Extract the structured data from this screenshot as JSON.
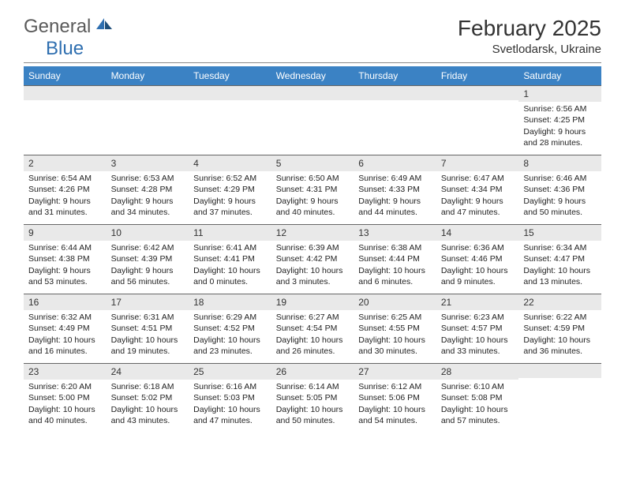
{
  "brand": {
    "part1": "General",
    "part2": "Blue"
  },
  "title": "February 2025",
  "location": "Svetlodarsk, Ukraine",
  "headers": [
    "Sunday",
    "Monday",
    "Tuesday",
    "Wednesday",
    "Thursday",
    "Friday",
    "Saturday"
  ],
  "colors": {
    "header_bg": "#3b82c4",
    "header_fg": "#ffffff",
    "daynum_bg": "#e9e9e9",
    "divider": "#888888",
    "logo_gray": "#5a5a5a",
    "logo_blue": "#2f6fb0"
  },
  "weeks": [
    [
      {
        "n": "",
        "sunrise": "",
        "sunset": "",
        "daylight": ""
      },
      {
        "n": "",
        "sunrise": "",
        "sunset": "",
        "daylight": ""
      },
      {
        "n": "",
        "sunrise": "",
        "sunset": "",
        "daylight": ""
      },
      {
        "n": "",
        "sunrise": "",
        "sunset": "",
        "daylight": ""
      },
      {
        "n": "",
        "sunrise": "",
        "sunset": "",
        "daylight": ""
      },
      {
        "n": "",
        "sunrise": "",
        "sunset": "",
        "daylight": ""
      },
      {
        "n": "1",
        "sunrise": "Sunrise: 6:56 AM",
        "sunset": "Sunset: 4:25 PM",
        "daylight": "Daylight: 9 hours and 28 minutes."
      }
    ],
    [
      {
        "n": "2",
        "sunrise": "Sunrise: 6:54 AM",
        "sunset": "Sunset: 4:26 PM",
        "daylight": "Daylight: 9 hours and 31 minutes."
      },
      {
        "n": "3",
        "sunrise": "Sunrise: 6:53 AM",
        "sunset": "Sunset: 4:28 PM",
        "daylight": "Daylight: 9 hours and 34 minutes."
      },
      {
        "n": "4",
        "sunrise": "Sunrise: 6:52 AM",
        "sunset": "Sunset: 4:29 PM",
        "daylight": "Daylight: 9 hours and 37 minutes."
      },
      {
        "n": "5",
        "sunrise": "Sunrise: 6:50 AM",
        "sunset": "Sunset: 4:31 PM",
        "daylight": "Daylight: 9 hours and 40 minutes."
      },
      {
        "n": "6",
        "sunrise": "Sunrise: 6:49 AM",
        "sunset": "Sunset: 4:33 PM",
        "daylight": "Daylight: 9 hours and 44 minutes."
      },
      {
        "n": "7",
        "sunrise": "Sunrise: 6:47 AM",
        "sunset": "Sunset: 4:34 PM",
        "daylight": "Daylight: 9 hours and 47 minutes."
      },
      {
        "n": "8",
        "sunrise": "Sunrise: 6:46 AM",
        "sunset": "Sunset: 4:36 PM",
        "daylight": "Daylight: 9 hours and 50 minutes."
      }
    ],
    [
      {
        "n": "9",
        "sunrise": "Sunrise: 6:44 AM",
        "sunset": "Sunset: 4:38 PM",
        "daylight": "Daylight: 9 hours and 53 minutes."
      },
      {
        "n": "10",
        "sunrise": "Sunrise: 6:42 AM",
        "sunset": "Sunset: 4:39 PM",
        "daylight": "Daylight: 9 hours and 56 minutes."
      },
      {
        "n": "11",
        "sunrise": "Sunrise: 6:41 AM",
        "sunset": "Sunset: 4:41 PM",
        "daylight": "Daylight: 10 hours and 0 minutes."
      },
      {
        "n": "12",
        "sunrise": "Sunrise: 6:39 AM",
        "sunset": "Sunset: 4:42 PM",
        "daylight": "Daylight: 10 hours and 3 minutes."
      },
      {
        "n": "13",
        "sunrise": "Sunrise: 6:38 AM",
        "sunset": "Sunset: 4:44 PM",
        "daylight": "Daylight: 10 hours and 6 minutes."
      },
      {
        "n": "14",
        "sunrise": "Sunrise: 6:36 AM",
        "sunset": "Sunset: 4:46 PM",
        "daylight": "Daylight: 10 hours and 9 minutes."
      },
      {
        "n": "15",
        "sunrise": "Sunrise: 6:34 AM",
        "sunset": "Sunset: 4:47 PM",
        "daylight": "Daylight: 10 hours and 13 minutes."
      }
    ],
    [
      {
        "n": "16",
        "sunrise": "Sunrise: 6:32 AM",
        "sunset": "Sunset: 4:49 PM",
        "daylight": "Daylight: 10 hours and 16 minutes."
      },
      {
        "n": "17",
        "sunrise": "Sunrise: 6:31 AM",
        "sunset": "Sunset: 4:51 PM",
        "daylight": "Daylight: 10 hours and 19 minutes."
      },
      {
        "n": "18",
        "sunrise": "Sunrise: 6:29 AM",
        "sunset": "Sunset: 4:52 PM",
        "daylight": "Daylight: 10 hours and 23 minutes."
      },
      {
        "n": "19",
        "sunrise": "Sunrise: 6:27 AM",
        "sunset": "Sunset: 4:54 PM",
        "daylight": "Daylight: 10 hours and 26 minutes."
      },
      {
        "n": "20",
        "sunrise": "Sunrise: 6:25 AM",
        "sunset": "Sunset: 4:55 PM",
        "daylight": "Daylight: 10 hours and 30 minutes."
      },
      {
        "n": "21",
        "sunrise": "Sunrise: 6:23 AM",
        "sunset": "Sunset: 4:57 PM",
        "daylight": "Daylight: 10 hours and 33 minutes."
      },
      {
        "n": "22",
        "sunrise": "Sunrise: 6:22 AM",
        "sunset": "Sunset: 4:59 PM",
        "daylight": "Daylight: 10 hours and 36 minutes."
      }
    ],
    [
      {
        "n": "23",
        "sunrise": "Sunrise: 6:20 AM",
        "sunset": "Sunset: 5:00 PM",
        "daylight": "Daylight: 10 hours and 40 minutes."
      },
      {
        "n": "24",
        "sunrise": "Sunrise: 6:18 AM",
        "sunset": "Sunset: 5:02 PM",
        "daylight": "Daylight: 10 hours and 43 minutes."
      },
      {
        "n": "25",
        "sunrise": "Sunrise: 6:16 AM",
        "sunset": "Sunset: 5:03 PM",
        "daylight": "Daylight: 10 hours and 47 minutes."
      },
      {
        "n": "26",
        "sunrise": "Sunrise: 6:14 AM",
        "sunset": "Sunset: 5:05 PM",
        "daylight": "Daylight: 10 hours and 50 minutes."
      },
      {
        "n": "27",
        "sunrise": "Sunrise: 6:12 AM",
        "sunset": "Sunset: 5:06 PM",
        "daylight": "Daylight: 10 hours and 54 minutes."
      },
      {
        "n": "28",
        "sunrise": "Sunrise: 6:10 AM",
        "sunset": "Sunset: 5:08 PM",
        "daylight": "Daylight: 10 hours and 57 minutes."
      },
      {
        "n": "",
        "sunrise": "",
        "sunset": "",
        "daylight": ""
      }
    ]
  ]
}
